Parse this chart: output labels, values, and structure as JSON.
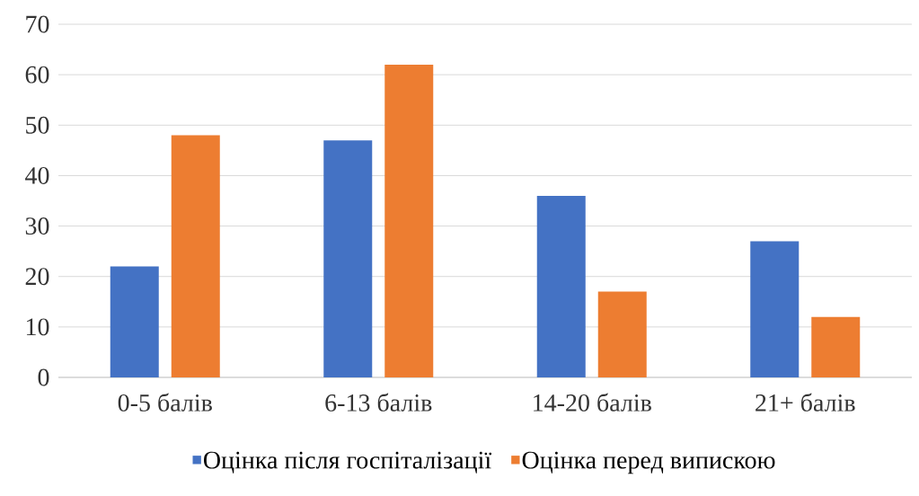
{
  "chart_data": {
    "type": "bar",
    "categories": [
      "0-5 балів",
      "6-13 балів",
      "14-20 балів",
      "21+ балів"
    ],
    "series": [
      {
        "name": "Оцінка після госпіталізації",
        "color": "#4472c4",
        "values": [
          22,
          47,
          36,
          27
        ]
      },
      {
        "name": "Оцінка перед випискою",
        "color": "#ed7d31",
        "values": [
          48,
          62,
          17,
          12
        ]
      }
    ],
    "ylim": [
      0,
      70
    ],
    "yticks": [
      0,
      10,
      20,
      30,
      40,
      50,
      60,
      70
    ],
    "grid": "y",
    "legend": "bottom"
  }
}
